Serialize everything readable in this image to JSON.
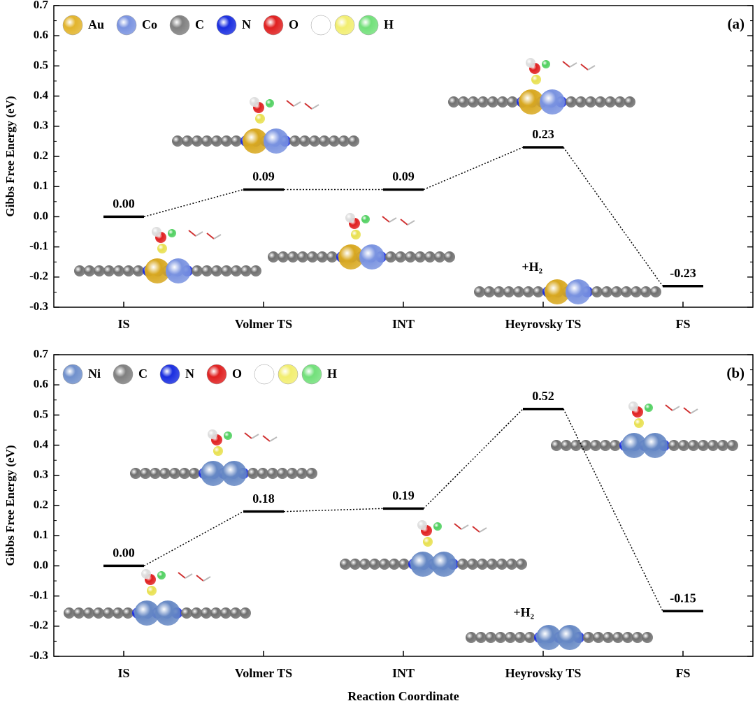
{
  "chart_data": [
    {
      "type": "energy-level",
      "panel_label": "(a)",
      "y_label": "Gibbs Free Energy (eV)",
      "categories": [
        "IS",
        "Volmer TS",
        "INT",
        "Heyrovsky TS",
        "FS"
      ],
      "values": [
        0,
        0.09,
        0.09,
        0.23,
        -0.23
      ],
      "value_labels": [
        "0.00",
        "0.09",
        "0.09",
        "0.23",
        "-0.23"
      ],
      "color": "#000000",
      "ylim": [
        -0.3,
        0.7
      ],
      "yticks": [
        -0.3,
        -0.2,
        -0.1,
        {
          "value": 0,
          "label": "0.0"
        },
        0.1,
        0.2,
        0.3,
        0.4,
        0.5,
        0.6,
        0.7
      ],
      "legend": [
        {
          "name": "Au",
          "colors": [
            "#e2b42c"
          ]
        },
        {
          "name": "Co",
          "colors": [
            "#7a93e0"
          ]
        },
        {
          "name": "C",
          "colors": [
            "#808080"
          ]
        },
        {
          "name": "N",
          "colors": [
            "#1a2ee0"
          ]
        },
        {
          "name": "O",
          "colors": [
            "#e02020"
          ]
        },
        {
          "name": "H",
          "colors": [
            "#ffffff",
            "#f2ee70",
            "#72e07a"
          ]
        }
      ],
      "annotations": [
        "+H₂"
      ]
    },
    {
      "type": "energy-level",
      "panel_label": "(b)",
      "y_label": "Gibbs Free Energy (eV)",
      "x_label": "Reaction Coordinate",
      "categories": [
        "IS",
        "Volmer TS",
        "INT",
        "Heyrovsky TS",
        "FS"
      ],
      "values": [
        0,
        0.18,
        0.19,
        0.52,
        -0.15
      ],
      "value_labels": [
        "0.00",
        "0.18",
        "0.19",
        "0.52",
        "-0.15"
      ],
      "color": "#000000",
      "ylim": [
        -0.3,
        0.7
      ],
      "yticks": [
        -0.3,
        -0.2,
        -0.1,
        {
          "value": 0,
          "label": "0.0"
        },
        0.1,
        0.2,
        0.3,
        0.4,
        0.5,
        0.6,
        0.7
      ],
      "legend": [
        {
          "name": "Ni",
          "colors": [
            "#7090cc"
          ]
        },
        {
          "name": "C",
          "colors": [
            "#808080"
          ]
        },
        {
          "name": "N",
          "colors": [
            "#1a2ee0"
          ]
        },
        {
          "name": "O",
          "colors": [
            "#e02020"
          ]
        },
        {
          "name": "H",
          "colors": [
            "#ffffff",
            "#f2ee70",
            "#72e07a"
          ]
        }
      ],
      "annotations": [
        "+H₂"
      ]
    }
  ]
}
